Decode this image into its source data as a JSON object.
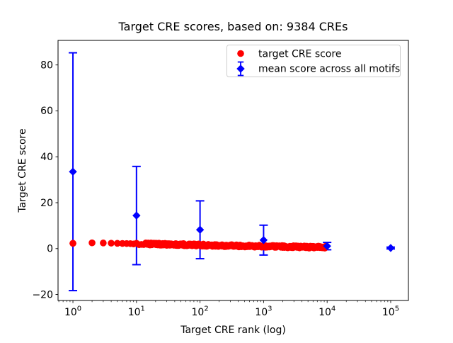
{
  "chart_data": {
    "type": "scatter",
    "title": "Target CRE scores, based on: 9384 CREs",
    "xlabel": "Target CRE rank (log)",
    "ylabel": "Target CRE score",
    "xscale": "log",
    "xlim": [
      0.583,
      190000
    ],
    "ylim": [
      -22.6,
      90.7
    ],
    "grid": false,
    "frame_color": "#000000",
    "background_color": "#ffffff",
    "xticks": [
      {
        "value": 1,
        "base": "10",
        "exp": "0"
      },
      {
        "value": 10,
        "base": "10",
        "exp": "1"
      },
      {
        "value": 100,
        "base": "10",
        "exp": "2"
      },
      {
        "value": 1000,
        "base": "10",
        "exp": "3"
      },
      {
        "value": 10000,
        "base": "10",
        "exp": "4"
      },
      {
        "value": 100000,
        "base": "10",
        "exp": "5"
      }
    ],
    "yticks": [
      {
        "value": -20,
        "label": "−20"
      },
      {
        "value": 0,
        "label": "0"
      },
      {
        "value": 20,
        "label": "20"
      },
      {
        "value": 40,
        "label": "40"
      },
      {
        "value": 60,
        "label": "60"
      },
      {
        "value": 80,
        "label": "80"
      }
    ],
    "series": [
      {
        "name": "target CRE score",
        "color": "#ff0000",
        "marker": "circle",
        "n_points": 9384,
        "rank_range": [
          1,
          9384
        ],
        "trend_log10rank_vs_score": [
          [
            0,
            2.3
          ],
          [
            0.301,
            2.5
          ],
          [
            0.477,
            2.45
          ],
          [
            0.699,
            2.3
          ],
          [
            1.0,
            2.1
          ],
          [
            1.301,
            1.95
          ],
          [
            1.699,
            1.75
          ],
          [
            2.0,
            1.55
          ],
          [
            2.5,
            1.25
          ],
          [
            3.0,
            1.0
          ],
          [
            3.5,
            0.75
          ],
          [
            3.972,
            0.55
          ]
        ]
      },
      {
        "name": "mean score across all motifs",
        "color": "#0000ff",
        "marker": "diamond",
        "x": [
          1,
          10,
          100,
          1000,
          10000,
          100000
        ],
        "y": [
          33.5,
          14.4,
          8.2,
          3.7,
          1.1,
          0.25
        ],
        "yerr": [
          51.8,
          21.4,
          12.6,
          6.5,
          1.6,
          0.4
        ]
      }
    ],
    "legend": {
      "position": "upper right",
      "entries": [
        {
          "label": "target CRE score",
          "color": "#ff0000",
          "marker": "circle"
        },
        {
          "label": "mean score across all motifs",
          "color": "#0000ff",
          "marker": "diamond-errorbar"
        }
      ]
    }
  }
}
